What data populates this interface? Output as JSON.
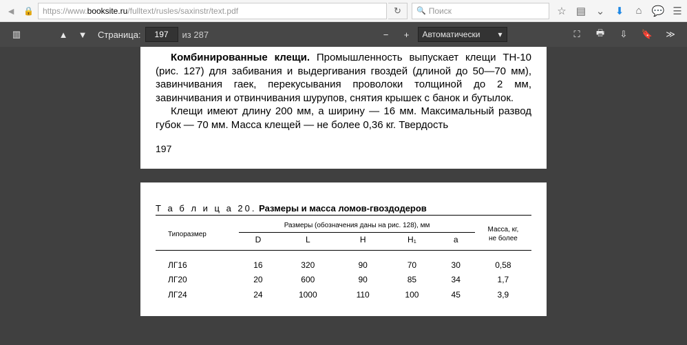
{
  "browser": {
    "url_gray": "https://www.",
    "url_host": "booksite.ru",
    "url_path": "/fulltext/rusles/saxinstr/text.pdf",
    "search_placeholder": "Поиск"
  },
  "pdf": {
    "page_label": "Страница:",
    "page_current": "197",
    "page_sep": "из",
    "page_total": "287",
    "zoom": "Автоматически"
  },
  "doc": {
    "p1_bold": "Комбинированные клещи.",
    "p1": " Промышленность выпускает клещи ТН-10 (рис. 127) для забивания и выдергивания гвоздей (длиной до 50—70 мм), завинчивания гаек, перекусывания проволоки толщиной до 2 мм, завинчивания и отвинчивания шурупов, снятия крышек с банок и бутылок.",
    "p2": "Клещи имеют длину 200 мм, а ширину — 16 мм. Максимальный развод губок — 70 мм. Масса клещей — не более 0,36 кг. Твердость",
    "pagenum": "197",
    "table_label": "Т а б л и ц а  20.",
    "table_title": "Размеры и масса ломов-гвоздодеров",
    "col_type": "Типоразмер",
    "col_dims": "Размеры (обозначения даны на рис. 128), мм",
    "col_mass": "Масса, кг,\nне более",
    "sub": [
      "D",
      "L",
      "H",
      "H₁",
      "a"
    ],
    "rows": [
      {
        "t": "ЛГ16",
        "d": "16",
        "l": "320",
        "h": "90",
        "h1": "70",
        "a": "30",
        "m": "0,58"
      },
      {
        "t": "ЛГ20",
        "d": "20",
        "l": "600",
        "h": "90",
        "h1": "85",
        "a": "34",
        "m": "1,7"
      },
      {
        "t": "ЛГ24",
        "d": "24",
        "l": "1000",
        "h": "110",
        "h1": "100",
        "a": "45",
        "m": "3,9"
      }
    ]
  }
}
